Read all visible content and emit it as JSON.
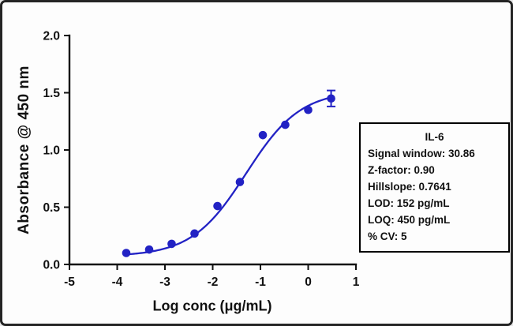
{
  "colors": {
    "series_blue": "#2222c4",
    "axis": "#111111",
    "frame_border": "#242424"
  },
  "chart_data": {
    "type": "scatter",
    "title": "",
    "xlabel": "Log conc (μg/mL)",
    "ylabel": "Absorbance @ 450 nm",
    "xlim": [
      -5,
      1
    ],
    "ylim": [
      0,
      2
    ],
    "xticks": [
      -5,
      -4,
      -3,
      -2,
      -1,
      0,
      1
    ],
    "yticks": [
      0,
      0.5,
      1,
      1.5,
      2
    ],
    "grid": false,
    "legend": "none",
    "series": [
      {
        "name": "IL-6",
        "x": [
          -3.81,
          -3.33,
          -2.86,
          -2.38,
          -1.9,
          -1.43,
          -0.95,
          -0.48,
          0.0,
          0.48
        ],
        "y": [
          0.1,
          0.13,
          0.18,
          0.27,
          0.51,
          0.72,
          1.13,
          1.22,
          1.35,
          1.45
        ],
        "yerr": [
          0.01,
          0.01,
          0.01,
          0.01,
          0.015,
          0.015,
          0.035,
          0.02,
          0.02,
          0.07
        ],
        "marker": "circle",
        "color": "#2222c4"
      }
    ],
    "fit": {
      "model": "4PL",
      "bottom": 0.07,
      "top": 1.52,
      "logec50": -1.3,
      "hillslope": 0.7641
    }
  },
  "stats_box": {
    "title": "IL-6",
    "lines": [
      "Signal window: 30.86",
      "Z-factor: 0.90",
      "Hillslope: 0.7641",
      "LOD: 152 pg/mL",
      "LOQ: 450 pg/mL",
      "% CV: 5"
    ]
  }
}
